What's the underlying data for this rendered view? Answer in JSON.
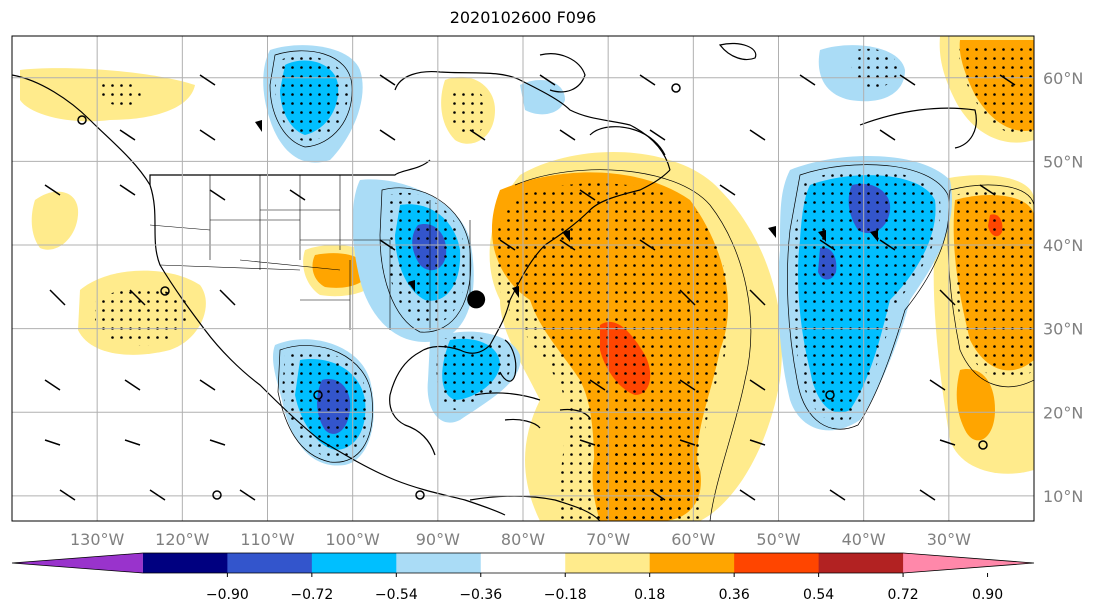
{
  "title": "2020102600 F096",
  "map": {
    "lon_range": [
      -140,
      -20
    ],
    "lat_range": [
      7,
      65
    ],
    "gridlines": true,
    "lon_ticks": [
      {
        "value": -130,
        "label": "130°W"
      },
      {
        "value": -120,
        "label": "120°W"
      },
      {
        "value": -110,
        "label": "110°W"
      },
      {
        "value": -100,
        "label": "100°W"
      },
      {
        "value": -90,
        "label": "90°W"
      },
      {
        "value": -80,
        "label": "80°W"
      },
      {
        "value": -70,
        "label": "70°W"
      },
      {
        "value": -60,
        "label": "60°W"
      },
      {
        "value": -50,
        "label": "50°W"
      },
      {
        "value": -40,
        "label": "40°W"
      },
      {
        "value": -30,
        "label": "30°W"
      }
    ],
    "lat_ticks": [
      {
        "value": 60,
        "label": "60°N"
      },
      {
        "value": 50,
        "label": "50°N"
      },
      {
        "value": 40,
        "label": "40°N"
      },
      {
        "value": 30,
        "label": "30°N"
      },
      {
        "value": 20,
        "label": "20°N"
      },
      {
        "value": 10,
        "label": "10°N"
      }
    ],
    "marker": {
      "lon": -85.5,
      "lat": 33.5
    }
  },
  "colorbar": {
    "colors": [
      "#9933cc",
      "#000080",
      "#3355cc",
      "#00bfff",
      "#aadcf6",
      "#ffffff",
      "#ffeb8c",
      "#ffa500",
      "#ff4500",
      "#b22222",
      "#ff88aa"
    ],
    "labels": [
      "−0.90",
      "−0.72",
      "−0.54",
      "−0.36",
      "−0.18",
      "0.18",
      "0.36",
      "0.54",
      "0.72",
      "0.90"
    ]
  }
}
